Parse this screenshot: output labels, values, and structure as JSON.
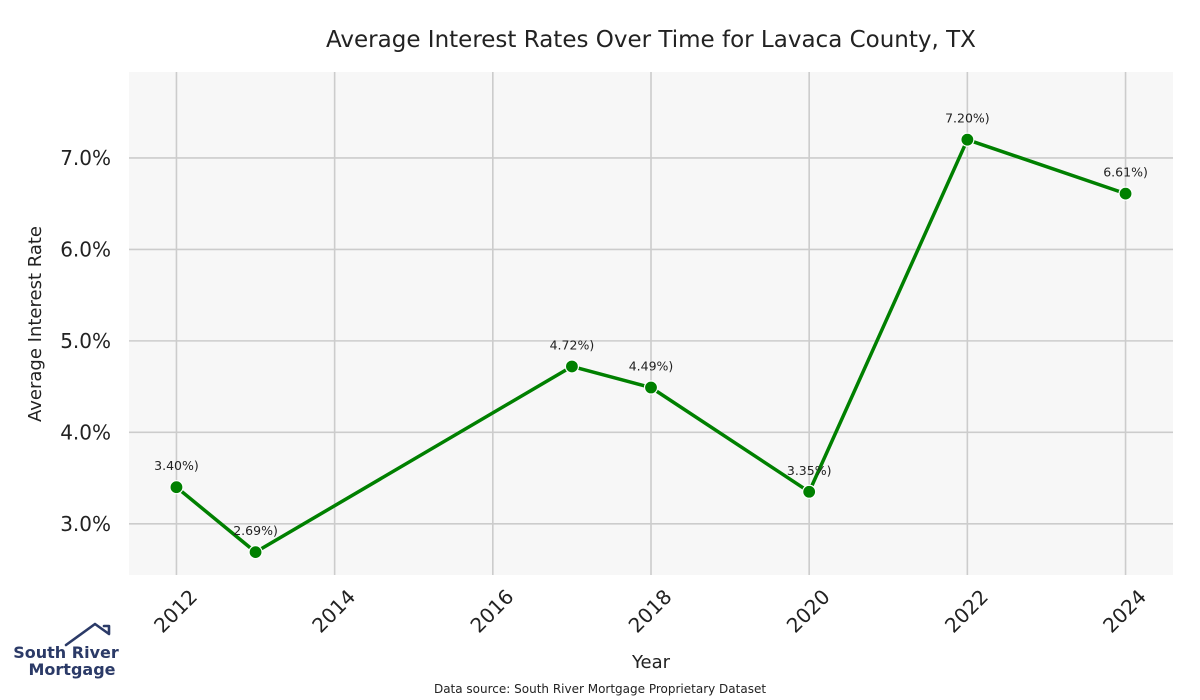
{
  "chart_data": {
    "type": "line",
    "title": "Average Interest Rates Over Time for Lavaca County, TX",
    "xlabel": "Year",
    "ylabel": "Average Interest Rate",
    "x": [
      2012,
      2013,
      2017,
      2018,
      2020,
      2022,
      2024
    ],
    "values": [
      3.4,
      2.69,
      4.72,
      4.49,
      3.35,
      7.2,
      6.61
    ],
    "data_labels": [
      "3.40%)",
      "2.69%)",
      "4.72%)",
      "4.49%)",
      "3.35%)",
      "7.20%)",
      "6.61%)"
    ],
    "xticks": [
      2012,
      2014,
      2016,
      2018,
      2020,
      2022,
      2024
    ],
    "xtick_labels": [
      "2012",
      "2014",
      "2016",
      "2018",
      "2020",
      "2022",
      "2024"
    ],
    "yticks": [
      3.0,
      4.0,
      5.0,
      6.0,
      7.0
    ],
    "ytick_labels": [
      "3.0%",
      "4.0%",
      "5.0%",
      "6.0%",
      "7.0%"
    ],
    "xlim": [
      2011.4,
      2024.6
    ],
    "ylim": [
      2.44,
      7.94
    ],
    "grid": true,
    "line_color": "#008000",
    "plot_background": "#f7f7f7",
    "grid_color": "#cccccc"
  },
  "source": "Data source: South River Mortgage Proprietary Dataset",
  "logo": {
    "line1": "South River",
    "line2": "Mortgage",
    "color": "#2b3a67",
    "icon": "house-roof-icon"
  }
}
